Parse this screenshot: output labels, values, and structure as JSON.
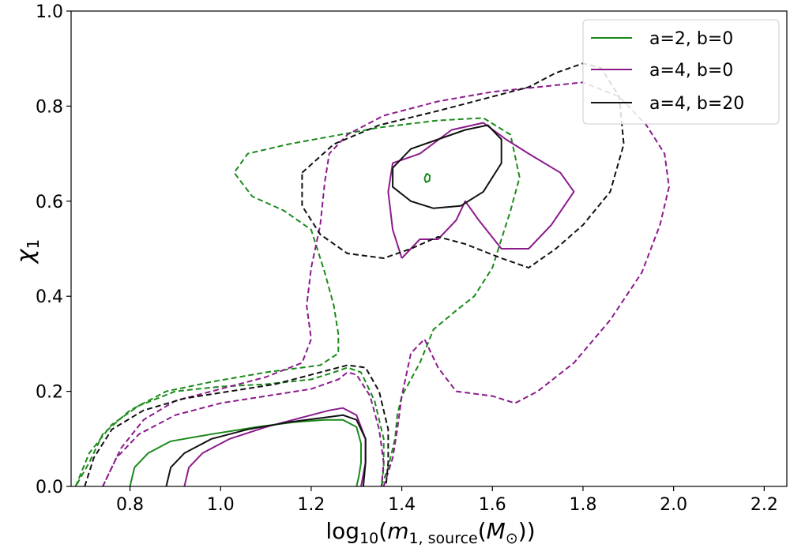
{
  "chart_data": {
    "type": "contour",
    "x_axis": {
      "label_main": "log",
      "label_sub": "10",
      "label_paren_open": "(",
      "label_m": "m",
      "label_m_sub": "1, source",
      "label_inner_open": "(",
      "label_M": "M",
      "label_M_sub": "⊙",
      "label_close": "))",
      "range": [
        0.67,
        2.25
      ],
      "ticks": [
        0.8,
        1.0,
        1.2,
        1.4,
        1.6,
        1.8,
        2.0,
        2.2
      ],
      "tick_labels": [
        "0.8",
        "1.0",
        "1.2",
        "1.4",
        "1.6",
        "1.8",
        "2.0",
        "2.2"
      ]
    },
    "y_axis": {
      "label_main": "χ",
      "label_sub": "1",
      "range": [
        0.0,
        1.0
      ],
      "ticks": [
        0.0,
        0.2,
        0.4,
        0.6,
        0.8,
        1.0
      ],
      "tick_labels": [
        "0.0",
        "0.2",
        "0.4",
        "0.6",
        "0.8",
        "1.0"
      ]
    },
    "legend": {
      "position": "top-right",
      "entries": [
        {
          "name": "a=2, b=0",
          "color": "#1a8a1a"
        },
        {
          "name": "a=4, b=0",
          "color": "#8b1a8b"
        },
        {
          "name": "a=4, b=20",
          "color": "#111111"
        }
      ]
    },
    "series": [
      {
        "name": "a=2, b=0",
        "color": "#1a8a1a",
        "contours": [
          {
            "style": "dashed",
            "points": [
              [
                0.68,
                0.0
              ],
              [
                0.71,
                0.07
              ],
              [
                0.76,
                0.13
              ],
              [
                0.82,
                0.17
              ],
              [
                0.9,
                0.2
              ],
              [
                1.0,
                0.21
              ],
              [
                1.1,
                0.215
              ],
              [
                1.2,
                0.225
              ],
              [
                1.25,
                0.24
              ],
              [
                1.28,
                0.25
              ],
              [
                1.31,
                0.24
              ],
              [
                1.34,
                0.18
              ],
              [
                1.36,
                0.1
              ],
              [
                1.36,
                0.04
              ],
              [
                1.355,
                0.0
              ]
            ]
          },
          {
            "style": "dashed",
            "points": [
              [
                1.355,
                0.0
              ],
              [
                1.37,
                0.04
              ],
              [
                1.385,
                0.1
              ],
              [
                1.39,
                0.15
              ],
              [
                1.4,
                0.19
              ],
              [
                1.44,
                0.26
              ],
              [
                1.47,
                0.33
              ],
              [
                1.52,
                0.37
              ],
              [
                1.56,
                0.4
              ],
              [
                1.6,
                0.46
              ],
              [
                1.62,
                0.52
              ],
              [
                1.64,
                0.58
              ],
              [
                1.66,
                0.65
              ],
              [
                1.64,
                0.74
              ],
              [
                1.58,
                0.775
              ],
              [
                1.48,
                0.77
              ],
              [
                1.35,
                0.755
              ],
              [
                1.15,
                0.72
              ],
              [
                1.06,
                0.7
              ],
              [
                1.03,
                0.66
              ],
              [
                1.07,
                0.61
              ],
              [
                1.14,
                0.58
              ],
              [
                1.2,
                0.54
              ],
              [
                1.23,
                0.45
              ],
              [
                1.25,
                0.38
              ],
              [
                1.26,
                0.32
              ],
              [
                1.26,
                0.28
              ],
              [
                1.22,
                0.255
              ],
              [
                1.1,
                0.24
              ],
              [
                0.98,
                0.22
              ],
              [
                0.88,
                0.2
              ],
              [
                0.8,
                0.16
              ],
              [
                0.74,
                0.11
              ],
              [
                0.71,
                0.05
              ],
              [
                0.68,
                0.0
              ]
            ]
          },
          {
            "style": "solid",
            "points": [
              [
                0.8,
                0.0
              ],
              [
                0.81,
                0.04
              ],
              [
                0.84,
                0.07
              ],
              [
                0.89,
                0.095
              ],
              [
                0.98,
                0.11
              ],
              [
                1.08,
                0.125
              ],
              [
                1.16,
                0.135
              ],
              [
                1.23,
                0.14
              ],
              [
                1.27,
                0.14
              ],
              [
                1.3,
                0.125
              ],
              [
                1.31,
                0.09
              ],
              [
                1.31,
                0.05
              ],
              [
                1.305,
                0.02
              ],
              [
                1.3,
                0.0
              ]
            ]
          },
          {
            "style": "solid",
            "points": [
              [
                1.45,
                0.648
              ],
              [
                1.455,
                0.658
              ],
              [
                1.462,
                0.654
              ],
              [
                1.461,
                0.643
              ],
              [
                1.453,
                0.64
              ],
              [
                1.45,
                0.648
              ]
            ]
          }
        ]
      },
      {
        "name": "a=4, b=0",
        "color": "#8b1a8b",
        "contours": [
          {
            "style": "dashed",
            "points": [
              [
                0.74,
                0.0
              ],
              [
                0.77,
                0.06
              ],
              [
                0.82,
                0.11
              ],
              [
                0.9,
                0.15
              ],
              [
                1.0,
                0.175
              ],
              [
                1.1,
                0.19
              ],
              [
                1.2,
                0.205
              ],
              [
                1.26,
                0.225
              ],
              [
                1.28,
                0.24
              ],
              [
                1.3,
                0.235
              ],
              [
                1.33,
                0.19
              ],
              [
                1.35,
                0.12
              ],
              [
                1.36,
                0.05
              ],
              [
                1.355,
                0.0
              ]
            ]
          },
          {
            "style": "dashed",
            "points": [
              [
                1.36,
                0.0
              ],
              [
                1.38,
                0.06
              ],
              [
                1.39,
                0.12
              ],
              [
                1.4,
                0.19
              ],
              [
                1.42,
                0.28
              ],
              [
                1.45,
                0.31
              ],
              [
                1.48,
                0.25
              ],
              [
                1.52,
                0.2
              ],
              [
                1.6,
                0.19
              ],
              [
                1.65,
                0.175
              ],
              [
                1.7,
                0.2
              ],
              [
                1.78,
                0.26
              ],
              [
                1.86,
                0.35
              ],
              [
                1.93,
                0.45
              ],
              [
                1.97,
                0.55
              ],
              [
                1.99,
                0.63
              ],
              [
                1.98,
                0.7
              ],
              [
                1.94,
                0.76
              ],
              [
                1.88,
                0.82
              ],
              [
                1.8,
                0.85
              ],
              [
                1.7,
                0.84
              ],
              [
                1.6,
                0.83
              ],
              [
                1.48,
                0.81
              ],
              [
                1.36,
                0.78
              ],
              [
                1.28,
                0.74
              ],
              [
                1.24,
                0.7
              ],
              [
                1.23,
                0.64
              ],
              [
                1.22,
                0.55
              ],
              [
                1.2,
                0.46
              ],
              [
                1.19,
                0.38
              ],
              [
                1.2,
                0.31
              ],
              [
                1.18,
                0.26
              ],
              [
                1.1,
                0.23
              ],
              [
                1.0,
                0.205
              ],
              [
                0.9,
                0.18
              ],
              [
                0.83,
                0.14
              ],
              [
                0.78,
                0.08
              ],
              [
                0.74,
                0.0
              ]
            ]
          },
          {
            "style": "solid",
            "points": [
              [
                0.92,
                0.0
              ],
              [
                0.93,
                0.04
              ],
              [
                0.96,
                0.07
              ],
              [
                1.02,
                0.1
              ],
              [
                1.1,
                0.125
              ],
              [
                1.18,
                0.145
              ],
              [
                1.24,
                0.16
              ],
              [
                1.27,
                0.165
              ],
              [
                1.3,
                0.15
              ],
              [
                1.32,
                0.1
              ],
              [
                1.32,
                0.05
              ],
              [
                1.31,
                0.0
              ]
            ]
          },
          {
            "style": "solid",
            "points": [
              [
                1.4,
                0.48
              ],
              [
                1.44,
                0.52
              ],
              [
                1.48,
                0.52
              ],
              [
                1.52,
                0.56
              ],
              [
                1.54,
                0.6
              ],
              [
                1.57,
                0.56
              ],
              [
                1.62,
                0.5
              ],
              [
                1.68,
                0.5
              ],
              [
                1.73,
                0.55
              ],
              [
                1.78,
                0.62
              ],
              [
                1.75,
                0.66
              ],
              [
                1.68,
                0.7
              ],
              [
                1.63,
                0.73
              ],
              [
                1.58,
                0.765
              ],
              [
                1.51,
                0.75
              ],
              [
                1.44,
                0.7
              ],
              [
                1.38,
                0.68
              ],
              [
                1.37,
                0.62
              ],
              [
                1.38,
                0.54
              ],
              [
                1.4,
                0.48
              ]
            ]
          }
        ]
      },
      {
        "name": "a=4, b=20",
        "color": "#111111",
        "contours": [
          {
            "style": "dashed",
            "points": [
              [
                0.7,
                0.0
              ],
              [
                0.72,
                0.06
              ],
              [
                0.76,
                0.12
              ],
              [
                0.83,
                0.16
              ],
              [
                0.92,
                0.185
              ],
              [
                1.02,
                0.2
              ],
              [
                1.12,
                0.215
              ],
              [
                1.22,
                0.24
              ],
              [
                1.28,
                0.255
              ],
              [
                1.32,
                0.25
              ],
              [
                1.35,
                0.2
              ],
              [
                1.37,
                0.12
              ],
              [
                1.37,
                0.05
              ],
              [
                1.365,
                0.0
              ]
            ]
          },
          {
            "style": "solid",
            "points": [
              [
                0.88,
                0.0
              ],
              [
                0.89,
                0.04
              ],
              [
                0.92,
                0.07
              ],
              [
                0.98,
                0.1
              ],
              [
                1.06,
                0.12
              ],
              [
                1.15,
                0.135
              ],
              [
                1.23,
                0.145
              ],
              [
                1.27,
                0.15
              ],
              [
                1.3,
                0.14
              ],
              [
                1.32,
                0.1
              ],
              [
                1.32,
                0.05
              ],
              [
                1.315,
                0.0
              ]
            ]
          },
          {
            "style": "dashed",
            "points": [
              [
                1.18,
                0.66
              ],
              [
                1.25,
                0.72
              ],
              [
                1.35,
                0.76
              ],
              [
                1.48,
                0.79
              ],
              [
                1.6,
                0.82
              ],
              [
                1.68,
                0.84
              ],
              [
                1.74,
                0.87
              ],
              [
                1.8,
                0.89
              ],
              [
                1.84,
                0.88
              ],
              [
                1.88,
                0.82
              ],
              [
                1.89,
                0.72
              ],
              [
                1.86,
                0.62
              ],
              [
                1.8,
                0.55
              ],
              [
                1.74,
                0.5
              ],
              [
                1.68,
                0.46
              ],
              [
                1.62,
                0.48
              ],
              [
                1.54,
                0.51
              ],
              [
                1.48,
                0.525
              ],
              [
                1.42,
                0.5
              ],
              [
                1.36,
                0.48
              ],
              [
                1.28,
                0.49
              ],
              [
                1.22,
                0.53
              ],
              [
                1.18,
                0.59
              ],
              [
                1.18,
                0.66
              ]
            ]
          },
          {
            "style": "solid",
            "points": [
              [
                1.38,
                0.67
              ],
              [
                1.42,
                0.71
              ],
              [
                1.48,
                0.73
              ],
              [
                1.54,
                0.75
              ],
              [
                1.59,
                0.76
              ],
              [
                1.62,
                0.73
              ],
              [
                1.62,
                0.68
              ],
              [
                1.58,
                0.62
              ],
              [
                1.53,
                0.59
              ],
              [
                1.47,
                0.585
              ],
              [
                1.42,
                0.6
              ],
              [
                1.38,
                0.63
              ],
              [
                1.38,
                0.67
              ]
            ]
          }
        ]
      }
    ]
  }
}
